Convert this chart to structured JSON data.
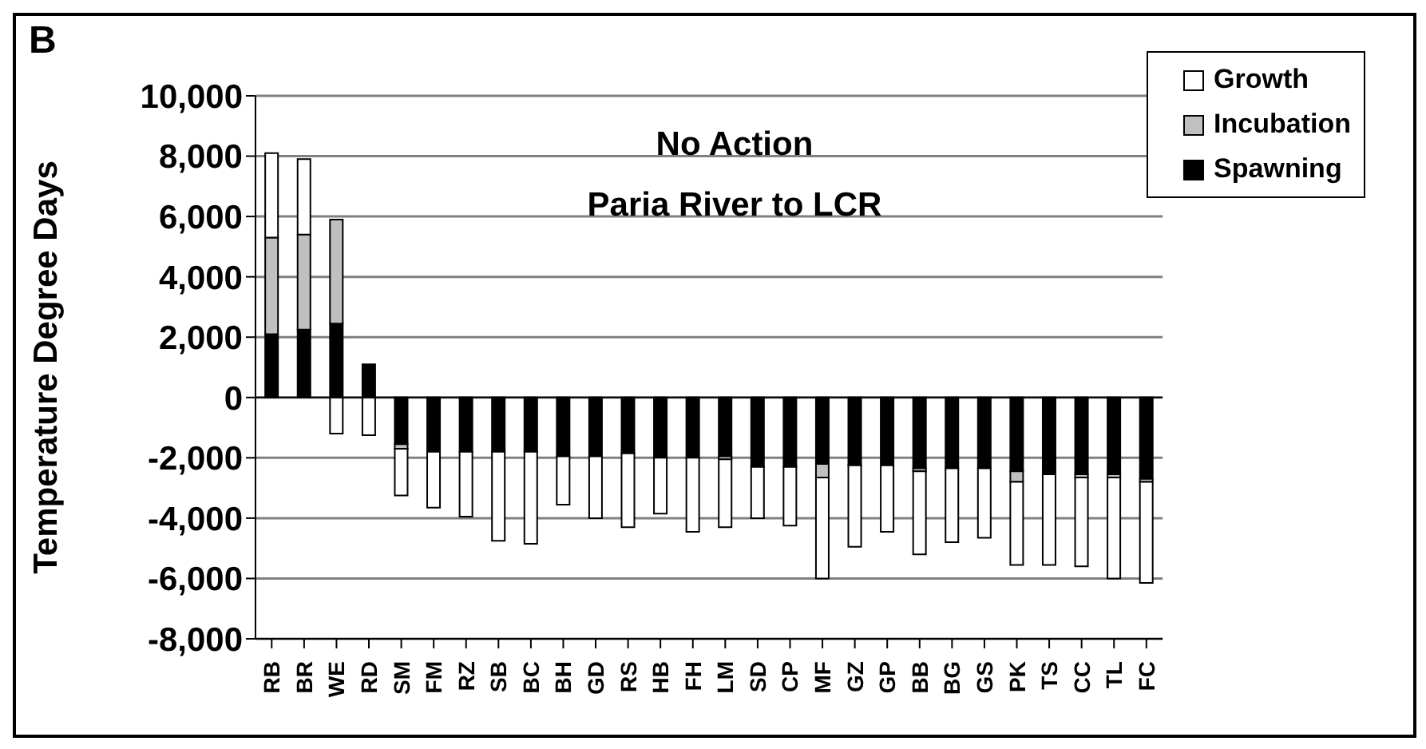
{
  "chart_data": {
    "type": "bar",
    "stacked": true,
    "ylabel": "Temperature Degree Days",
    "annotations": [
      "B",
      "No Action",
      "Paria River to LCR"
    ],
    "categories": [
      "RB",
      "BR",
      "WE",
      "RD",
      "SM",
      "FM",
      "RZ",
      "SB",
      "BC",
      "BH",
      "GD",
      "RS",
      "HB",
      "FH",
      "LM",
      "SD",
      "CP",
      "MF",
      "GZ",
      "GP",
      "BB",
      "BG",
      "GS",
      "PK",
      "TS",
      "CC",
      "TL",
      "FC"
    ],
    "series": [
      {
        "name": "Spawning",
        "color": "#000000",
        "values": [
          2100,
          2250,
          2450,
          1100,
          -1550,
          -1800,
          -1800,
          -1800,
          -1800,
          -1950,
          -1950,
          -1850,
          -2000,
          -2000,
          -1950,
          -2300,
          -2300,
          -2200,
          -2250,
          -2250,
          -2350,
          -2350,
          -2350,
          -2450,
          -2550,
          -2550,
          -2550,
          -2700
        ]
      },
      {
        "name": "Incubation",
        "color": "#c0c0c0",
        "values": [
          3200,
          3150,
          3450,
          null,
          -150,
          null,
          null,
          null,
          null,
          null,
          null,
          null,
          null,
          null,
          -100,
          null,
          null,
          -450,
          null,
          null,
          -100,
          null,
          null,
          -350,
          null,
          -100,
          -100,
          -100
        ]
      },
      {
        "name": "Growth",
        "color": "#ffffff",
        "values": [
          2800,
          2500,
          -1200,
          -1250,
          -1550,
          -1850,
          -2150,
          -2950,
          -3050,
          -1600,
          -2050,
          -2450,
          -1850,
          -2450,
          -2250,
          -1700,
          -1950,
          -3350,
          -2700,
          -2200,
          -2750,
          -2450,
          -2300,
          -2750,
          -3000,
          -2950,
          -3350,
          -3350
        ]
      }
    ],
    "ylim": [
      -8000,
      10000
    ],
    "yticks": [
      {
        "value": -8000,
        "label": "-8,000"
      },
      {
        "value": -6000,
        "label": "-6,000"
      },
      {
        "value": -4000,
        "label": "-4,000"
      },
      {
        "value": -2000,
        "label": "-2,000"
      },
      0,
      {
        "value": 2000,
        "label": "2,000"
      },
      {
        "value": 4000,
        "label": "4,000"
      },
      {
        "value": 6000,
        "label": "6,000"
      },
      {
        "value": 8000,
        "label": "8,000"
      },
      {
        "value": 10000,
        "label": "10,000"
      }
    ],
    "grid": "y",
    "legend": "top right"
  }
}
